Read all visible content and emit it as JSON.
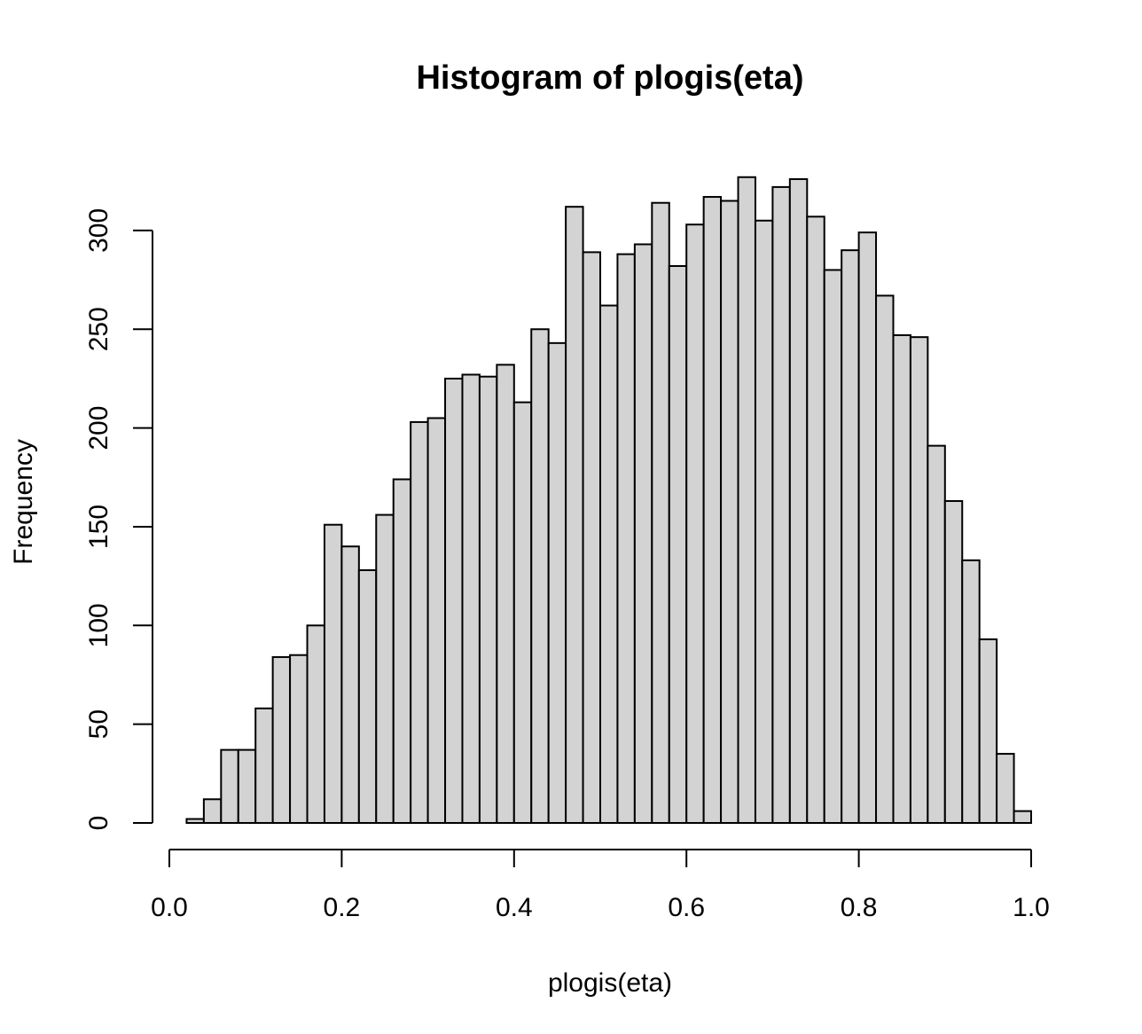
{
  "chart_data": {
    "type": "bar",
    "title": "Histogram of plogis(eta)",
    "xlabel": "plogis(eta)",
    "ylabel": "Frequency",
    "xlim": [
      0,
      1
    ],
    "ylim": [
      0,
      330
    ],
    "x_ticks": [
      "0.0",
      "0.2",
      "0.4",
      "0.6",
      "0.8",
      "1.0"
    ],
    "y_ticks": [
      "0",
      "50",
      "100",
      "150",
      "200",
      "250",
      "300"
    ],
    "bin_width": 0.02,
    "bins_start": [
      0.02,
      0.04,
      0.06,
      0.08,
      0.1,
      0.12,
      0.14,
      0.16,
      0.18,
      0.2,
      0.22,
      0.24,
      0.26,
      0.28,
      0.3,
      0.32,
      0.34,
      0.36,
      0.38,
      0.4,
      0.42,
      0.44,
      0.46,
      0.48,
      0.5,
      0.52,
      0.54,
      0.56,
      0.58,
      0.6,
      0.62,
      0.64,
      0.66,
      0.68,
      0.7,
      0.72,
      0.74,
      0.76,
      0.78,
      0.8,
      0.82,
      0.84,
      0.86,
      0.88,
      0.9,
      0.92,
      0.94,
      0.96,
      0.98
    ],
    "values": [
      2,
      12,
      37,
      37,
      58,
      84,
      85,
      100,
      151,
      140,
      128,
      156,
      174,
      203,
      205,
      225,
      227,
      226,
      232,
      213,
      250,
      243,
      312,
      289,
      262,
      288,
      293,
      314,
      282,
      303,
      317,
      315,
      327,
      305,
      322,
      326,
      307,
      280,
      290,
      299,
      267,
      247,
      246,
      191,
      163,
      133,
      93,
      35,
      6
    ],
    "bar_fill": "#d3d3d3",
    "bar_stroke": "#000000",
    "grid": false
  }
}
